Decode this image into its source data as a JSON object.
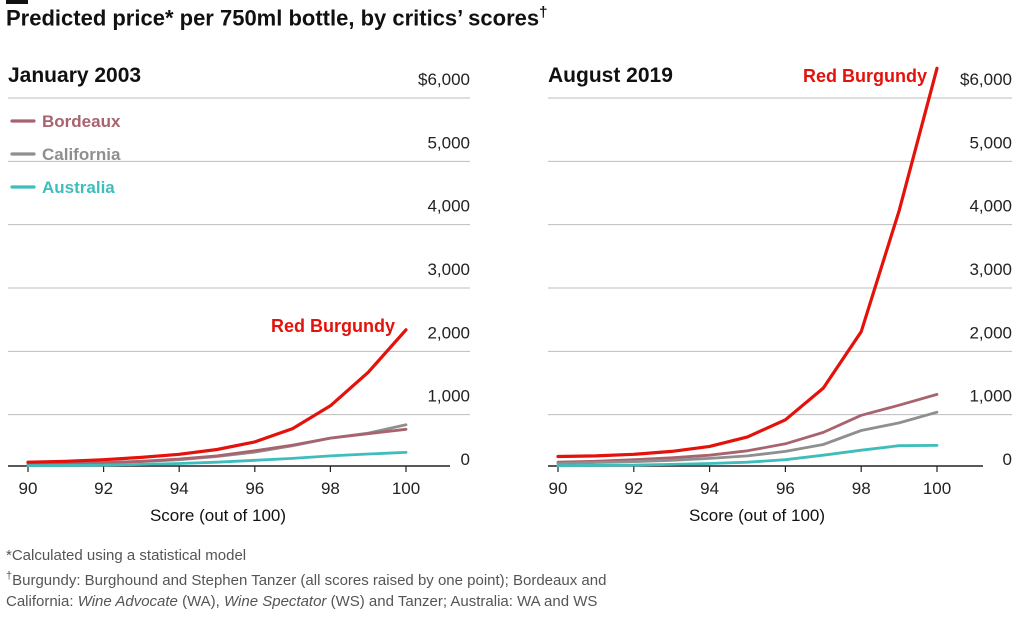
{
  "title": "Predicted price* per 750ml bottle, by critics’ scores",
  "title_dagger": "†",
  "footnotes": {
    "line1": "*Calculated using a statistical model",
    "line2_dagger": "†",
    "line2": "Burgundy: Burghound and Stephen Tanzer (all scores raised by one point); Bordeaux and",
    "line3_a": "California: ",
    "line3_b": "Wine Advocate",
    "line3_c": " (WA), ",
    "line3_d": "Wine Spectator",
    "line3_e": " (WS) and Tanzer; Australia: WA and WS"
  },
  "colors": {
    "Red Burgundy": "#e3120b",
    "Bordeaux": "#a8646e",
    "California": "#8f8f8f",
    "Australia": "#3fbdbd",
    "grid": "#bdbdbd",
    "axis": "#222222"
  },
  "chart_data": [
    {
      "type": "line",
      "title": "January 2003",
      "xlabel": "Score (out of 100)",
      "xlim": [
        90,
        100
      ],
      "ylim": [
        0,
        6000
      ],
      "x_ticks": [
        "90",
        "92",
        "94",
        "96",
        "98",
        "100"
      ],
      "y_ticks": [
        "0",
        "1,000",
        "2,000",
        "3,000",
        "4,000",
        "5,000",
        "$6,000"
      ],
      "legend": [
        "Bordeaux",
        "California",
        "Australia"
      ],
      "legend_position": "top-left",
      "grid": true,
      "x": [
        90,
        91,
        92,
        93,
        94,
        95,
        96,
        97,
        98,
        99,
        100
      ],
      "series": [
        {
          "name": "Red Burgundy",
          "values": [
            60,
            75,
            100,
            135,
            185,
            260,
            380,
            590,
            950,
            1480,
            2150
          ]
        },
        {
          "name": "California",
          "values": [
            25,
            35,
            50,
            70,
            100,
            150,
            220,
            320,
            440,
            520,
            650
          ]
        },
        {
          "name": "Bordeaux",
          "values": [
            30,
            40,
            55,
            75,
            110,
            160,
            240,
            330,
            440,
            510,
            580
          ]
        },
        {
          "name": "Australia",
          "values": [
            5,
            10,
            15,
            25,
            40,
            60,
            90,
            120,
            160,
            190,
            215
          ]
        }
      ],
      "annotations": [
        {
          "text": "Red Burgundy"
        }
      ]
    },
    {
      "type": "line",
      "title": "August 2019",
      "xlabel": "Score (out of 100)",
      "xlim": [
        90,
        100
      ],
      "ylim": [
        0,
        6000
      ],
      "x_ticks": [
        "90",
        "92",
        "94",
        "96",
        "98",
        "100"
      ],
      "y_ticks": [
        "0",
        "1,000",
        "2,000",
        "3,000",
        "4,000",
        "5,000",
        "$6,000"
      ],
      "grid": true,
      "x": [
        90,
        91,
        92,
        93,
        94,
        95,
        96,
        97,
        98,
        99,
        100
      ],
      "series": [
        {
          "name": "Red Burgundy",
          "values": [
            150,
            160,
            185,
            230,
            310,
            460,
            730,
            1230,
            2120,
            4030,
            6280
          ]
        },
        {
          "name": "Bordeaux",
          "values": [
            60,
            75,
            100,
            130,
            170,
            240,
            350,
            530,
            800,
            960,
            1130
          ]
        },
        {
          "name": "California",
          "values": [
            40,
            55,
            70,
            90,
            120,
            160,
            230,
            340,
            560,
            680,
            850
          ]
        },
        {
          "name": "Australia",
          "values": [
            5,
            10,
            15,
            25,
            40,
            60,
            100,
            170,
            250,
            320,
            325
          ]
        }
      ],
      "annotations": [
        {
          "text": "Red Burgundy"
        }
      ]
    }
  ]
}
